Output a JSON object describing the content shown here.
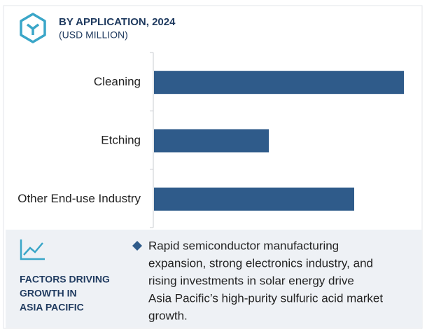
{
  "chart_data": {
    "type": "bar",
    "orientation": "horizontal",
    "title": "BY APPLICATION, 2024",
    "subtitle": "(USD MILLION)",
    "categories": [
      "Cleaning",
      "Etching",
      "Other End-use Industry"
    ],
    "values": [
      357,
      164,
      286
    ],
    "color": "#2f5b8a",
    "xlim": [
      0,
      370
    ]
  },
  "footer": {
    "heading": [
      "FACTORS DRIVING",
      "GROWTH IN",
      "ASIA PACIFIC"
    ],
    "text": [
      "Rapid semiconductor manufacturing",
      "expansion, strong electronics industry, and",
      "rising investments in  solar energy drive",
      "Asia Pacific’s high-purity sulfuric acid market",
      "growth."
    ]
  }
}
